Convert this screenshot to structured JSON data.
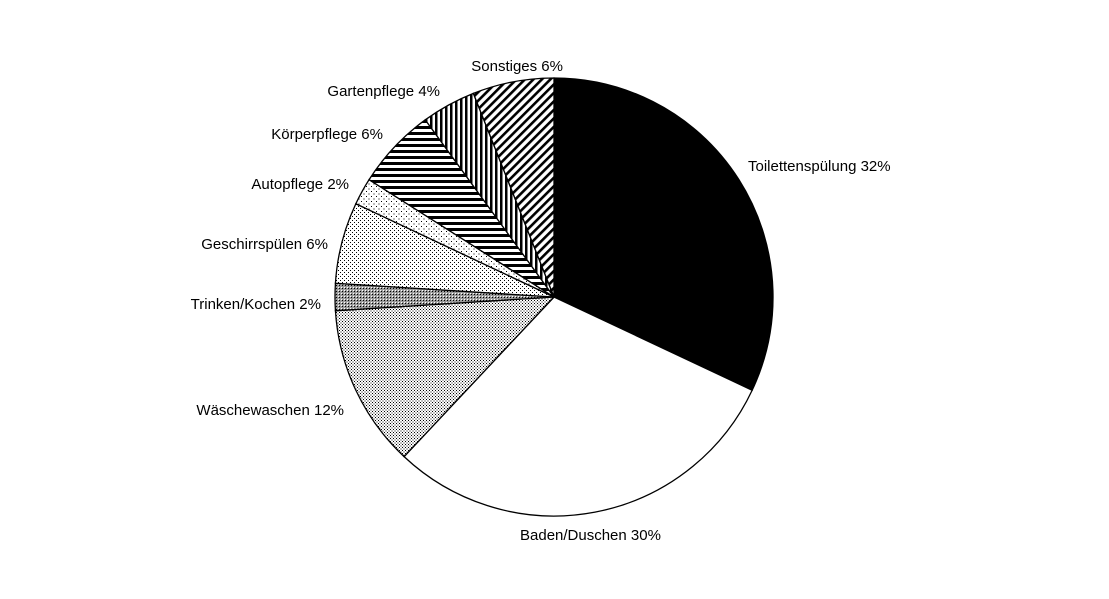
{
  "chart_data": {
    "type": "pie",
    "title": "",
    "start_angle_deg": 0,
    "direction": "clockwise",
    "slices": [
      {
        "label": "Toilettenspülung 32%",
        "value": 32,
        "pattern": "solid-black"
      },
      {
        "label": "Baden/Duschen 30%",
        "value": 30,
        "pattern": "white"
      },
      {
        "label": "Wäschewaschen 12%",
        "value": 12,
        "pattern": "dots-dense"
      },
      {
        "label": "Trinken/Kochen 2%",
        "value": 2,
        "pattern": "crosshatch"
      },
      {
        "label": "Geschirrspülen 6%",
        "value": 6,
        "pattern": "dots-light"
      },
      {
        "label": "Autopflege 2%",
        "value": 2,
        "pattern": "dots-sparse"
      },
      {
        "label": "Körperpflege 6%",
        "value": 6,
        "pattern": "horizontal-stripes"
      },
      {
        "label": "Gartenpflege 4%",
        "value": 4,
        "pattern": "vertical-stripes"
      },
      {
        "label": "Sonstiges  6%",
        "value": 6,
        "pattern": "diagonal-stripes"
      }
    ],
    "legend": "none",
    "colors": {
      "fill": "#000000",
      "background": "#ffffff"
    }
  }
}
